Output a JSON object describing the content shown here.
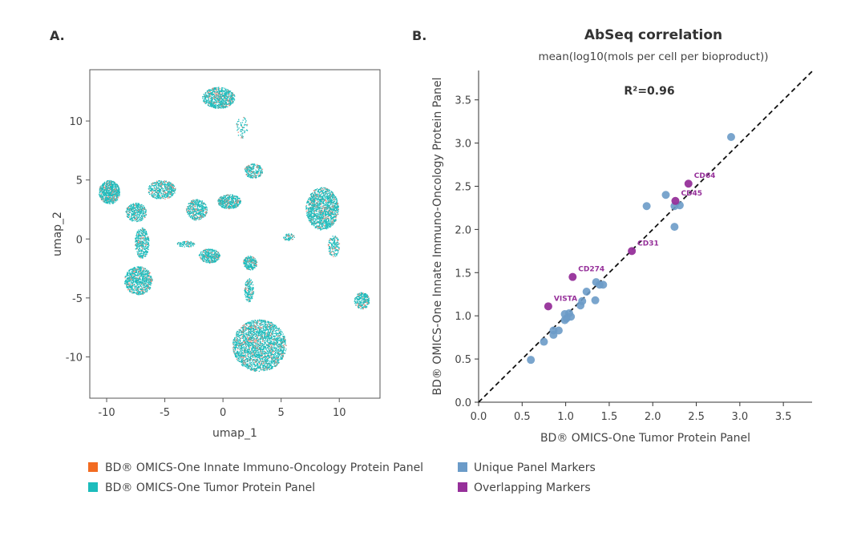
{
  "panels": {
    "a_label": "A.",
    "b_label": "B."
  },
  "chart_data": [
    {
      "type": "scatter",
      "title": "",
      "xlabel": "umap_1",
      "ylabel": "umap_2",
      "xlim": [
        -11.45,
        13.5
      ],
      "ylim": [
        -13.5,
        14.35
      ],
      "xticks": [
        -10,
        -5,
        0,
        5,
        10
      ],
      "yticks": [
        -10,
        -5,
        0,
        5,
        10
      ],
      "grid": false,
      "series": [
        {
          "name": "BD® OMICS-One Innate Immuno-Oncology Protein Panel",
          "color": "#f26b21",
          "point_color": "#f08a7a",
          "share": 0.15
        },
        {
          "name": "BD® OMICS-One Tumor Protein Panel",
          "color": "#1cbcbc",
          "point_color": "#1fbcbc",
          "share": 0.85
        }
      ],
      "clusters": [
        {
          "cx": -0.4,
          "cy": 12,
          "sx": 1.4,
          "sy": 0.9,
          "n": 700
        },
        {
          "cx": 1.6,
          "cy": 9.5,
          "sx": 0.5,
          "sy": 0.9,
          "n": 60
        },
        {
          "cx": 2.6,
          "cy": 5.8,
          "sx": 0.8,
          "sy": 0.6,
          "n": 220
        },
        {
          "cx": -9.8,
          "cy": 4.0,
          "sx": 0.9,
          "sy": 1.0,
          "n": 650
        },
        {
          "cx": -5.3,
          "cy": 4.2,
          "sx": 1.2,
          "sy": 0.8,
          "n": 450
        },
        {
          "cx": -7.5,
          "cy": 2.3,
          "sx": 0.9,
          "sy": 0.8,
          "n": 350
        },
        {
          "cx": -7.0,
          "cy": -0.3,
          "sx": 0.6,
          "sy": 1.3,
          "n": 350
        },
        {
          "cx": -7.3,
          "cy": -3.5,
          "sx": 1.2,
          "sy": 1.2,
          "n": 750
        },
        {
          "cx": -2.3,
          "cy": 2.5,
          "sx": 0.9,
          "sy": 0.9,
          "n": 400
        },
        {
          "cx": 0.5,
          "cy": 3.2,
          "sx": 1.0,
          "sy": 0.6,
          "n": 400
        },
        {
          "cx": -1.2,
          "cy": -1.4,
          "sx": 0.9,
          "sy": 0.6,
          "n": 350
        },
        {
          "cx": -3.2,
          "cy": -0.4,
          "sx": 0.8,
          "sy": 0.25,
          "n": 80
        },
        {
          "cx": 2.3,
          "cy": -2.0,
          "sx": 0.6,
          "sy": 0.6,
          "n": 250
        },
        {
          "cx": 2.2,
          "cy": -4.3,
          "sx": 0.4,
          "sy": 1.0,
          "n": 180
        },
        {
          "cx": 3.1,
          "cy": -9.0,
          "sx": 2.3,
          "sy": 2.2,
          "n": 2200
        },
        {
          "cx": 8.5,
          "cy": 2.6,
          "sx": 1.4,
          "sy": 1.8,
          "n": 1300
        },
        {
          "cx": 9.5,
          "cy": -0.6,
          "sx": 0.5,
          "sy": 0.9,
          "n": 150
        },
        {
          "cx": 11.9,
          "cy": -5.2,
          "sx": 0.65,
          "sy": 0.7,
          "n": 250
        },
        {
          "cx": 5.6,
          "cy": 0.2,
          "sx": 0.5,
          "sy": 0.3,
          "n": 60
        }
      ]
    },
    {
      "type": "scatter",
      "title": "AbSeq correlation",
      "subtitle": "mean(log10(mols per cell per bioproduct))",
      "xlabel": "BD® OMICS-One Tumor Protein Panel",
      "ylabel": "BD® OMICS-One Innate Immuno-Oncology Protein Panel",
      "annotation": "R²=0.96",
      "xlim": [
        0,
        3.83
      ],
      "ylim": [
        0,
        3.84
      ],
      "xticks": [
        "0.0",
        "0.5",
        "1.0",
        "1.5",
        "2.0",
        "2.5",
        "3.0",
        "3.5"
      ],
      "yticks": [
        "0.0",
        "0.5",
        "1.0",
        "1.5",
        "2.0",
        "2.5",
        "3.0",
        "3.5"
      ],
      "reference_line": "y = x (dashed)",
      "grid": false,
      "series": [
        {
          "name": "Unique Panel Markers",
          "color": "#6b9bc8",
          "points": [
            [
              2.9,
              3.07
            ],
            [
              1.93,
              2.27
            ],
            [
              2.15,
              2.4
            ],
            [
              2.25,
              2.27
            ],
            [
              2.31,
              2.28
            ],
            [
              2.25,
              2.03
            ],
            [
              1.34,
              1.18
            ],
            [
              1.35,
              1.39
            ],
            [
              1.39,
              1.36
            ],
            [
              1.43,
              1.36
            ],
            [
              1.24,
              1.28
            ],
            [
              1.17,
              1.12
            ],
            [
              1.19,
              1.17
            ],
            [
              1.04,
              1.03
            ],
            [
              0.99,
              1.02
            ],
            [
              1.01,
              0.97
            ],
            [
              1.06,
              0.99
            ],
            [
              0.99,
              0.95
            ],
            [
              0.86,
              0.83
            ],
            [
              0.92,
              0.83
            ],
            [
              0.86,
              0.78
            ],
            [
              0.75,
              0.7
            ],
            [
              0.6,
              0.49
            ]
          ]
        },
        {
          "name": "Overlapping Markers",
          "color": "#96309a",
          "points": [
            [
              0.8,
              1.11,
              "VISTA"
            ],
            [
              1.08,
              1.45,
              "CD274"
            ],
            [
              1.76,
              1.75,
              "CD31"
            ],
            [
              2.26,
              2.33,
              "CD45"
            ],
            [
              2.41,
              2.53,
              "CD64"
            ]
          ]
        }
      ]
    }
  ]
}
